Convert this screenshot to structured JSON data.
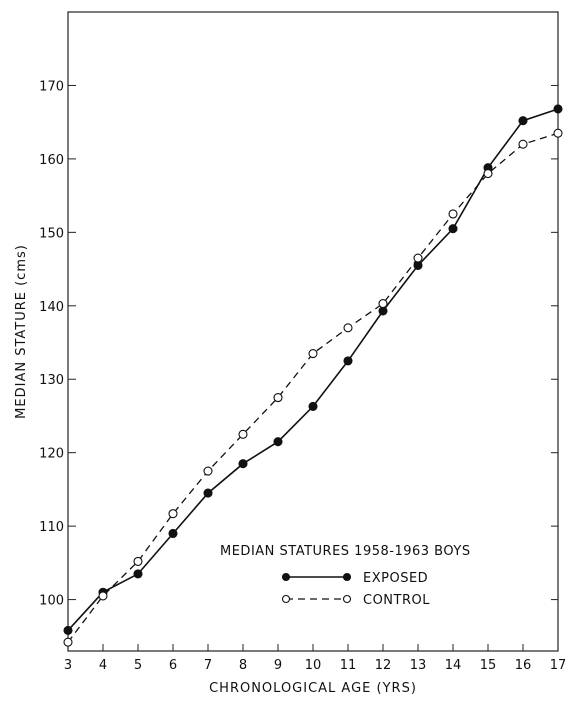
{
  "chart_data": {
    "type": "line",
    "title": "MEDIAN STATURES 1958-1963 BOYS",
    "xlabel": "CHRONOLOGICAL AGE (YRS)",
    "ylabel": "MEDIAN STATURE (cms)",
    "xlim": [
      3,
      17
    ],
    "ylim": [
      93,
      180
    ],
    "x": [
      3,
      4,
      5,
      6,
      7,
      8,
      9,
      10,
      11,
      12,
      13,
      14,
      15,
      16,
      17
    ],
    "x_ticks": [
      "3",
      "4",
      "5",
      "6",
      "7",
      "8",
      "9",
      "10",
      "11",
      "12",
      "13",
      "14",
      "15",
      "16",
      "17"
    ],
    "y_ticks": [
      {
        "value": 100,
        "label": "100"
      },
      {
        "value": 110,
        "label": "110"
      },
      {
        "value": 120,
        "label": "120"
      },
      {
        "value": 130,
        "label": "130"
      },
      {
        "value": 140,
        "label": "140"
      },
      {
        "value": 150,
        "label": "150"
      },
      {
        "value": 160,
        "label": "160"
      },
      {
        "value": 170,
        "label": "170"
      }
    ],
    "grid": false,
    "legend_position": "bottom-right",
    "series": [
      {
        "name": "EXPOSED",
        "style": "solid",
        "marker": "filled-circle",
        "color": "#111111",
        "values": [
          95.8,
          101.0,
          103.5,
          109.0,
          114.5,
          118.5,
          121.5,
          126.3,
          132.5,
          139.3,
          145.5,
          150.5,
          158.8,
          165.2,
          166.8
        ]
      },
      {
        "name": "CONTROL",
        "style": "dashed",
        "marker": "open-circle",
        "color": "#111111",
        "values": [
          94.2,
          100.5,
          105.2,
          111.7,
          117.5,
          122.5,
          127.5,
          133.5,
          137.0,
          140.3,
          146.5,
          152.5,
          158.0,
          162.0,
          163.5
        ]
      }
    ]
  }
}
